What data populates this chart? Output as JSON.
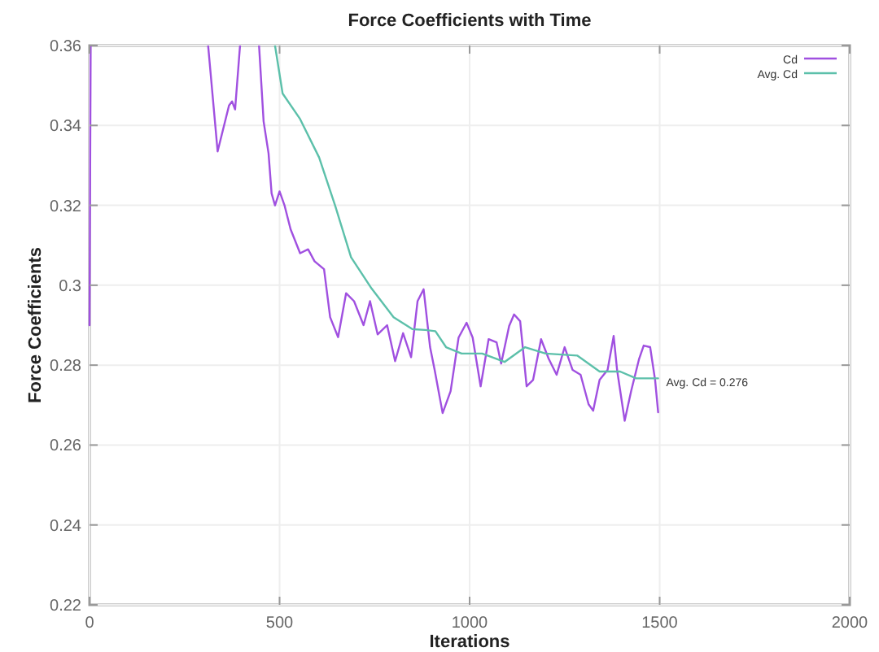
{
  "chart_data": {
    "type": "line",
    "title": "Force Coefficients with Time",
    "xlabel": "Iterations",
    "ylabel": "Force Coefficients",
    "xlim": [
      0,
      2000
    ],
    "xticks": [
      0,
      500,
      1000,
      1500,
      2000
    ],
    "ylim": [
      0.22,
      0.36
    ],
    "yticks": [
      0.22,
      0.24,
      0.26,
      0.28,
      0.3,
      0.32,
      0.34,
      0.36
    ],
    "grid": true,
    "legend": "top right",
    "annotations": [
      {
        "text": "Avg. Cd = 0.276",
        "x": 1500,
        "y": 0.276
      }
    ],
    "series": [
      {
        "name": "Cd",
        "color": "#a050e0",
        "x": [
          0,
          3,
          null,
          312,
          337,
          367,
          375,
          383,
          396,
          null,
          446,
          458,
          471,
          479,
          488,
          500,
          513,
          529,
          554,
          575,
          592,
          617,
          633,
          654,
          675,
          696,
          721,
          738,
          758,
          783,
          804,
          825,
          846,
          863,
          879,
          896,
          908,
          929,
          950,
          971,
          992,
          1008,
          1029,
          1050,
          1071,
          1083,
          1104,
          1117,
          1133,
          1150,
          1167,
          1188,
          1208,
          1229,
          1250,
          1271,
          1292,
          1313,
          1325,
          1342,
          1363,
          1379,
          1388,
          1408,
          1425,
          1446,
          1458,
          1475,
          1488,
          1496
        ],
        "values": [
          0.29,
          0.36,
          null,
          0.36,
          0.3335,
          0.345,
          0.346,
          0.344,
          0.36,
          null,
          0.36,
          0.341,
          0.333,
          0.323,
          0.32,
          0.3235,
          0.32,
          0.314,
          0.308,
          0.309,
          0.306,
          0.304,
          0.292,
          0.287,
          0.298,
          0.296,
          0.29,
          0.296,
          0.2877,
          0.29,
          0.281,
          0.288,
          0.282,
          0.296,
          0.299,
          0.2845,
          0.2788,
          0.268,
          0.2735,
          0.2869,
          0.2906,
          0.2869,
          0.2747,
          0.2865,
          0.2857,
          0.2804,
          0.2898,
          0.2927,
          0.291,
          0.2747,
          0.2763,
          0.2865,
          0.2816,
          0.2776,
          0.2845,
          0.2788,
          0.2776,
          0.2702,
          0.2686,
          0.2763,
          0.2788,
          0.2873,
          0.2788,
          0.2661,
          0.2735,
          0.2816,
          0.2849,
          0.2845,
          0.2763,
          0.2682
        ]
      },
      {
        "name": "Avg. Cd",
        "color": "#5cc0aa",
        "x": [
          488,
          508,
          554,
          604,
          646,
          688,
          742,
          800,
          850,
          883,
          910,
          938,
          979,
          1033,
          1092,
          1146,
          1200,
          1283,
          1342,
          1396,
          1438,
          1496
        ],
        "values": [
          0.36,
          0.348,
          0.3416,
          0.332,
          0.32,
          0.307,
          0.2992,
          0.292,
          0.289,
          0.2888,
          0.2885,
          0.2845,
          0.2829,
          0.2829,
          0.2808,
          0.2845,
          0.2829,
          0.2824,
          0.2784,
          0.2784,
          0.2767,
          0.2767
        ]
      }
    ]
  }
}
